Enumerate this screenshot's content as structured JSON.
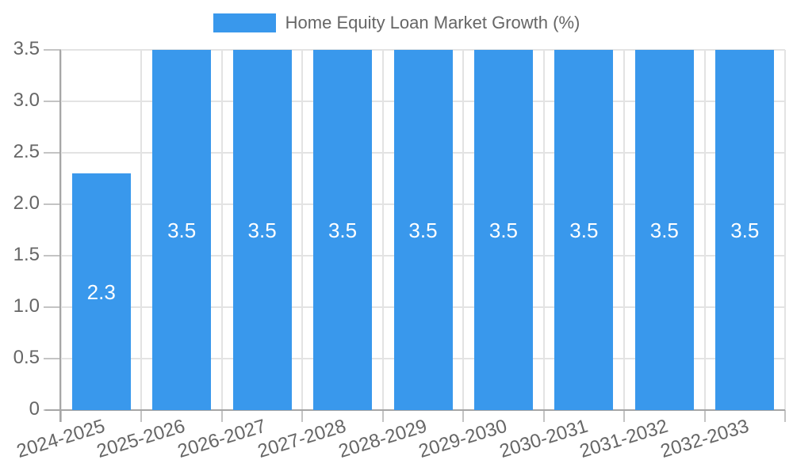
{
  "chart_data": {
    "type": "bar",
    "title": "Home Equity Loan Market Growth (%)",
    "legend_position": "top",
    "categories": [
      "2024-2025",
      "2025-2026",
      "2026-2027",
      "2027-2028",
      "2028-2029",
      "2029-2030",
      "2030-2031",
      "2031-2032",
      "2032-2033"
    ],
    "series": [
      {
        "name": "Home Equity Loan Market Growth (%)",
        "values": [
          2.3,
          3.5,
          3.5,
          3.5,
          3.5,
          3.5,
          3.5,
          3.5,
          3.5
        ],
        "value_labels": [
          "2.3",
          "3.5",
          "3.5",
          "3.5",
          "3.5",
          "3.5",
          "3.5",
          "3.5",
          "3.5"
        ]
      }
    ],
    "xlabel": "",
    "ylabel": "",
    "ylim": [
      0,
      3.5
    ],
    "ytick_labels": [
      "0",
      "0.5",
      "1.0",
      "1.5",
      "2.0",
      "2.5",
      "3.0",
      "3.5"
    ],
    "grid": true,
    "colors": {
      "bar": "#3998EC",
      "grid": "#E3E3E3",
      "axis": "#A6A6A6",
      "tick_mark": "#C4C4C4",
      "tick_text": "#666666",
      "value_label_text": "#FFFFFF",
      "background": "#FFFFFF"
    }
  }
}
